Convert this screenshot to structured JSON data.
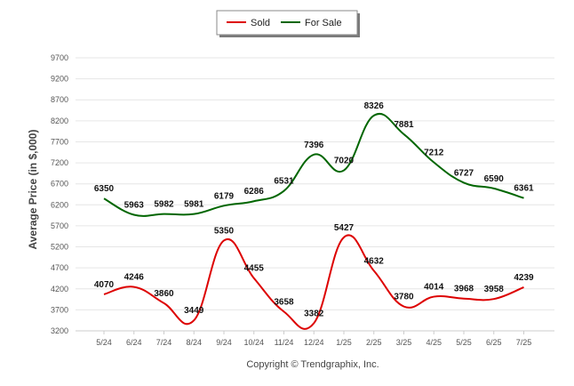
{
  "chart_data": {
    "type": "line",
    "categories": [
      "5/24",
      "6/24",
      "7/24",
      "8/24",
      "9/24",
      "10/24",
      "11/24",
      "12/24",
      "1/25",
      "2/25",
      "3/25",
      "4/25",
      "5/25",
      "6/25",
      "7/25"
    ],
    "series": [
      {
        "name": "Sold",
        "color": "#dd0000",
        "values": [
          4070,
          4246,
          3860,
          3449,
          5350,
          4455,
          3658,
          3382,
          5427,
          4632,
          3780,
          4014,
          3968,
          3958,
          4239
        ]
      },
      {
        "name": "For Sale",
        "color": "#006600",
        "values": [
          6350,
          5963,
          5982,
          5981,
          6179,
          6286,
          6531,
          7396,
          7020,
          8326,
          7881,
          7212,
          6727,
          6590,
          6361
        ]
      }
    ],
    "ylabel": "Average Price (in $,000)",
    "xlabel": "",
    "ylim": [
      3200,
      9700
    ],
    "yticks": [
      3200,
      3700,
      4200,
      4700,
      5200,
      5700,
      6200,
      6700,
      7200,
      7700,
      8200,
      8700,
      9200,
      9700
    ],
    "grid": true,
    "legend_position": "top-center",
    "credit": "Copyright © Trendgraphix, Inc."
  }
}
